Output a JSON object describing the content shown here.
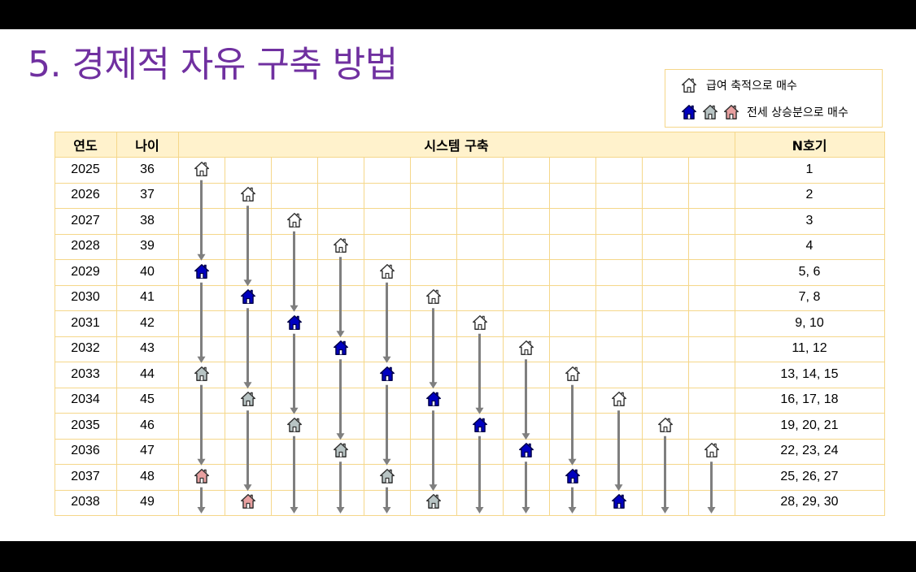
{
  "title": "5. 경제적 자유 구축 방법",
  "legend": {
    "row1_text": "급여 축적으로 매수",
    "row2_text": "전세 상승분으로 매수",
    "row1_icons": [
      "house-white"
    ],
    "row2_icons": [
      "house-blue",
      "house-gray",
      "house-pink"
    ]
  },
  "table": {
    "headers": {
      "year": "연도",
      "age": "나이",
      "system": "시스템 구축",
      "n": "N호기"
    },
    "rows": [
      {
        "year": "2025",
        "age": "36",
        "n": "1"
      },
      {
        "year": "2026",
        "age": "37",
        "n": "2"
      },
      {
        "year": "2027",
        "age": "38",
        "n": "3"
      },
      {
        "year": "2028",
        "age": "39",
        "n": "4"
      },
      {
        "year": "2029",
        "age": "40",
        "n": "5, 6"
      },
      {
        "year": "2030",
        "age": "41",
        "n": "7, 8"
      },
      {
        "year": "2031",
        "age": "42",
        "n": "9, 10"
      },
      {
        "year": "2032",
        "age": "43",
        "n": "11, 12"
      },
      {
        "year": "2033",
        "age": "44",
        "n": "13, 14, 15"
      },
      {
        "year": "2034",
        "age": "45",
        "n": "16, 17, 18"
      },
      {
        "year": "2035",
        "age": "46",
        "n": "19, 20, 21"
      },
      {
        "year": "2036",
        "age": "47",
        "n": "22, 23, 24"
      },
      {
        "year": "2037",
        "age": "48",
        "n": "25, 26, 27"
      },
      {
        "year": "2038",
        "age": "49",
        "n": "28, 29, 30"
      }
    ],
    "system_columns": 12,
    "houses": [
      {
        "col": 1,
        "row": 2025,
        "kind": "white"
      },
      {
        "col": 1,
        "row": 2029,
        "kind": "blue"
      },
      {
        "col": 1,
        "row": 2033,
        "kind": "gray"
      },
      {
        "col": 1,
        "row": 2037,
        "kind": "pink"
      },
      {
        "col": 2,
        "row": 2026,
        "kind": "white"
      },
      {
        "col": 2,
        "row": 2030,
        "kind": "blue"
      },
      {
        "col": 2,
        "row": 2034,
        "kind": "gray"
      },
      {
        "col": 2,
        "row": 2038,
        "kind": "pink"
      },
      {
        "col": 3,
        "row": 2027,
        "kind": "white"
      },
      {
        "col": 3,
        "row": 2031,
        "kind": "blue"
      },
      {
        "col": 3,
        "row": 2035,
        "kind": "gray"
      },
      {
        "col": 4,
        "row": 2028,
        "kind": "white"
      },
      {
        "col": 4,
        "row": 2032,
        "kind": "blue"
      },
      {
        "col": 4,
        "row": 2036,
        "kind": "gray"
      },
      {
        "col": 5,
        "row": 2029,
        "kind": "white"
      },
      {
        "col": 5,
        "row": 2033,
        "kind": "blue"
      },
      {
        "col": 5,
        "row": 2037,
        "kind": "gray"
      },
      {
        "col": 6,
        "row": 2030,
        "kind": "white"
      },
      {
        "col": 6,
        "row": 2034,
        "kind": "blue"
      },
      {
        "col": 6,
        "row": 2038,
        "kind": "gray"
      },
      {
        "col": 7,
        "row": 2031,
        "kind": "white"
      },
      {
        "col": 7,
        "row": 2035,
        "kind": "blue"
      },
      {
        "col": 8,
        "row": 2032,
        "kind": "white"
      },
      {
        "col": 8,
        "row": 2036,
        "kind": "blue"
      },
      {
        "col": 9,
        "row": 2033,
        "kind": "white"
      },
      {
        "col": 9,
        "row": 2037,
        "kind": "blue"
      },
      {
        "col": 10,
        "row": 2034,
        "kind": "white"
      },
      {
        "col": 10,
        "row": 2038,
        "kind": "blue"
      },
      {
        "col": 11,
        "row": 2035,
        "kind": "white"
      },
      {
        "col": 12,
        "row": 2036,
        "kind": "white"
      }
    ]
  },
  "colors": {
    "title": "#7030a0",
    "header_bg": "#fff2cc",
    "grid": "#f5d78a",
    "arrow": "#7f7f7f",
    "house_white": "#ffffff",
    "house_blue": "#0000c0",
    "house_gray": "#b8c4c4",
    "house_pink": "#e8a0a0"
  },
  "navbar": "← → ✎ ✎ ▤ »"
}
